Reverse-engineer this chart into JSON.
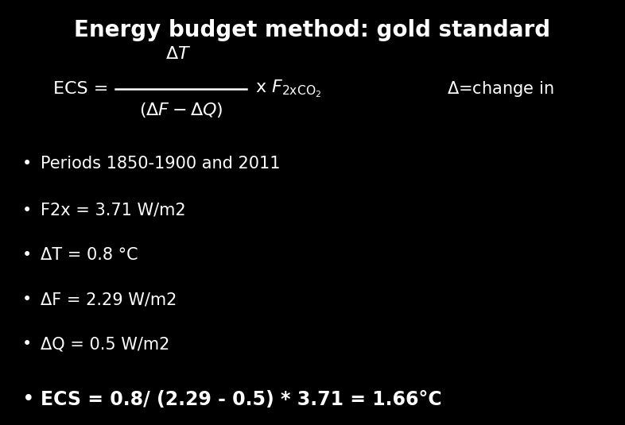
{
  "background_color": "#000000",
  "text_color": "#ffffff",
  "title": "Energy budget method: gold standard",
  "title_fontsize": 20,
  "bullet_fontsize": 15,
  "bullet_bold_fontsize": 17,
  "formula_fontsize": 15,
  "bullets": [
    {
      "text": "Periods 1850-1900 and 2011",
      "bold": false
    },
    {
      "text": "F2x = 3.71 W/m2",
      "bold": false
    },
    {
      "text": "ΔT = 0.8 °C",
      "bold": false
    },
    {
      "text": "ΔF = 2.29 W/m2",
      "bold": false
    },
    {
      "text": "ΔQ = 0.5 W/m2",
      "bold": false
    },
    {
      "text": "ECS = 0.8/ (2.29 - 0.5) * 3.71 = 1.66°C",
      "bold": true
    }
  ],
  "delta_change_text": "Δ=change in",
  "fig_width": 7.86,
  "fig_height": 5.35,
  "dpi": 100
}
